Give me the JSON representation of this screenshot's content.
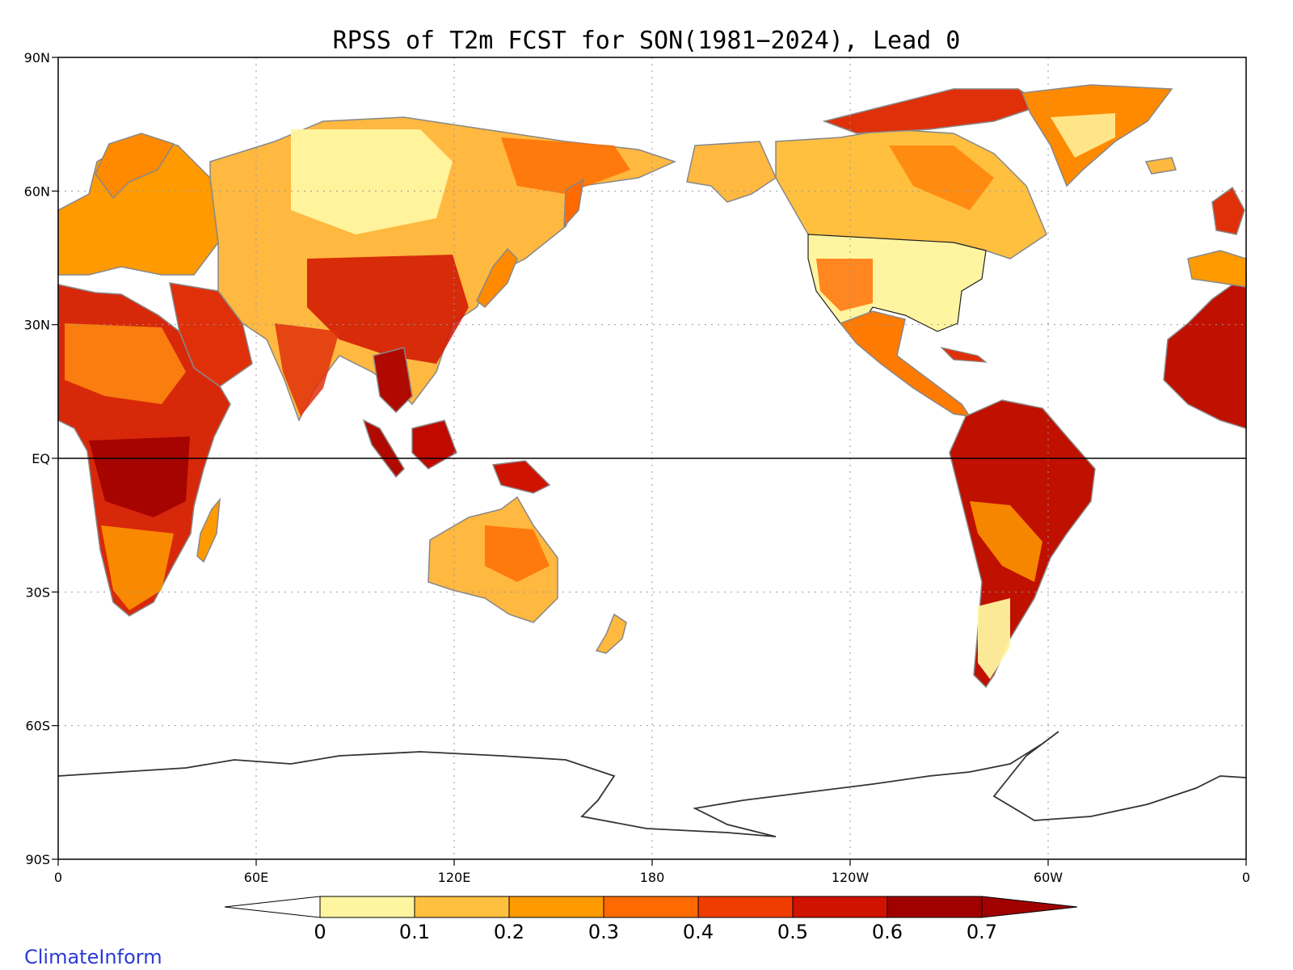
{
  "title": "RPSS of T2m FCST for SON(1981−2024), Lead 0",
  "credit": "ClimateInform",
  "chart_data": {
    "type": "heatmap",
    "projection": "equirectangular, Pacific-centred",
    "variable": "RPSS",
    "x_ticks": [
      "0",
      "60E",
      "120E",
      "180",
      "120W",
      "60W",
      "0"
    ],
    "y_ticks": [
      "90N",
      "60N",
      "30N",
      "EQ",
      "30S",
      "60S",
      "90S"
    ],
    "lon_range": [
      0,
      360
    ],
    "lat_range": [
      -90,
      90
    ],
    "grid": "dotted every 60° longitude and 30° latitude",
    "equator_line": true,
    "colorbar": {
      "labels": [
        "0",
        "0.1",
        "0.2",
        "0.3",
        "0.4",
        "0.5",
        "0.6",
        "0.7"
      ],
      "colors": [
        "#ffffff",
        "#fff5a0",
        "#ffc040",
        "#ff9a00",
        "#ff6a00",
        "#f03c00",
        "#d01200",
        "#a00000",
        "#a00000"
      ],
      "extend": "both"
    }
  }
}
